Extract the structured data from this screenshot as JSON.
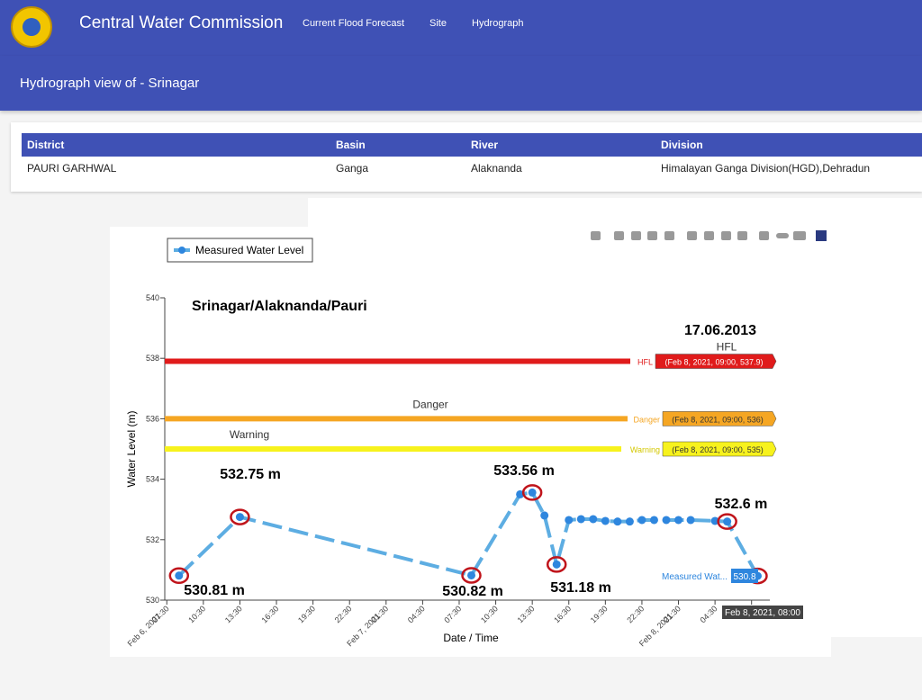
{
  "header": {
    "title": "Central Water Commission",
    "nav": [
      "Current Flood Forecast",
      "Site",
      "Hydrograph"
    ]
  },
  "subheader": {
    "title": "Hydrograph view of - Srinagar"
  },
  "table": {
    "columns": [
      "District",
      "Basin",
      "River",
      "Division"
    ],
    "rows": [
      [
        "PAURI GARHWAL",
        "Ganga",
        "Alaknanda",
        "Himalayan Ganga Division(HGD),Dehradun"
      ]
    ]
  },
  "chart_data": {
    "type": "line",
    "title": "Srinagar/Alaknanda/Pauri",
    "xlabel": "Date / Time",
    "ylabel": "Water Level (m)",
    "legend": "top-left",
    "xlim": [
      "2021-02-06T07:20",
      "2021-02-08T09:00"
    ],
    "ylim": [
      530,
      540
    ],
    "yticks": [
      530,
      532,
      534,
      536,
      538,
      540
    ],
    "xticks": [
      {
        "value": "2021-02-06T07:30",
        "label": "07:30",
        "date": "Feb 6, 2021"
      },
      {
        "value": "2021-02-06T10:30",
        "label": "10:30"
      },
      {
        "value": "2021-02-06T13:30",
        "label": "13:30"
      },
      {
        "value": "2021-02-06T16:30",
        "label": "16:30"
      },
      {
        "value": "2021-02-06T19:30",
        "label": "19:30"
      },
      {
        "value": "2021-02-06T22:30",
        "label": "22:30"
      },
      {
        "value": "2021-02-07T01:30",
        "label": "01:30",
        "date": "Feb 7, 2021"
      },
      {
        "value": "2021-02-07T04:30",
        "label": "04:30"
      },
      {
        "value": "2021-02-07T07:30",
        "label": "07:30"
      },
      {
        "value": "2021-02-07T10:30",
        "label": "10:30"
      },
      {
        "value": "2021-02-07T13:30",
        "label": "13:30"
      },
      {
        "value": "2021-02-07T16:30",
        "label": "16:30"
      },
      {
        "value": "2021-02-07T19:30",
        "label": "19:30"
      },
      {
        "value": "2021-02-07T22:30",
        "label": "22:30"
      },
      {
        "value": "2021-02-08T01:30",
        "label": "01:30",
        "date": "Feb 8, 2021"
      },
      {
        "value": "2021-02-08T04:30",
        "label": "04:30"
      },
      {
        "value": "2021-02-08T07:30",
        "label": "07:"
      }
    ],
    "series": [
      {
        "name": "Measured Water Level",
        "color": "#5dade2",
        "x": [
          "2021-02-06T08:30",
          "2021-02-06T13:30",
          "2021-02-07T08:30",
          "2021-02-07T12:30",
          "2021-02-07T13:30",
          "2021-02-07T14:30",
          "2021-02-07T15:30",
          "2021-02-07T16:30",
          "2021-02-07T17:30",
          "2021-02-07T18:30",
          "2021-02-07T19:30",
          "2021-02-07T20:30",
          "2021-02-07T21:30",
          "2021-02-07T22:30",
          "2021-02-07T23:30",
          "2021-02-08T00:30",
          "2021-02-08T01:30",
          "2021-02-08T02:30",
          "2021-02-08T04:30",
          "2021-02-08T05:30",
          "2021-02-08T08:00"
        ],
        "values": [
          530.81,
          532.75,
          530.82,
          533.5,
          533.56,
          532.8,
          531.18,
          532.65,
          532.68,
          532.68,
          532.62,
          532.6,
          532.6,
          532.65,
          532.65,
          532.65,
          532.65,
          532.65,
          532.62,
          532.6,
          530.8
        ]
      }
    ],
    "thresholds": [
      {
        "name": "HFL",
        "value": 537.9,
        "color": "#e01b1b",
        "tooltip": "(Feb 8, 2021, 09:00, 537.9)",
        "note": "HFL"
      },
      {
        "name": "Danger",
        "value": 536,
        "color": "#f5a623",
        "tooltip": "(Feb 8, 2021, 09:00, 536)",
        "note": "Danger"
      },
      {
        "name": "Warning",
        "value": 535,
        "color": "#f7f21d",
        "tooltip": "(Feb 8, 2021, 09:00, 535)",
        "note": "Warning"
      }
    ],
    "annotations": [
      "17.06.2013",
      "530.81 m",
      "532.75 m",
      "530.82 m",
      "533.56 m",
      "531.18 m",
      "532.6 m"
    ],
    "hover": {
      "name": "Measured Wat...",
      "value": "530.8",
      "x": "Feb 8, 2021, 08:00"
    }
  }
}
